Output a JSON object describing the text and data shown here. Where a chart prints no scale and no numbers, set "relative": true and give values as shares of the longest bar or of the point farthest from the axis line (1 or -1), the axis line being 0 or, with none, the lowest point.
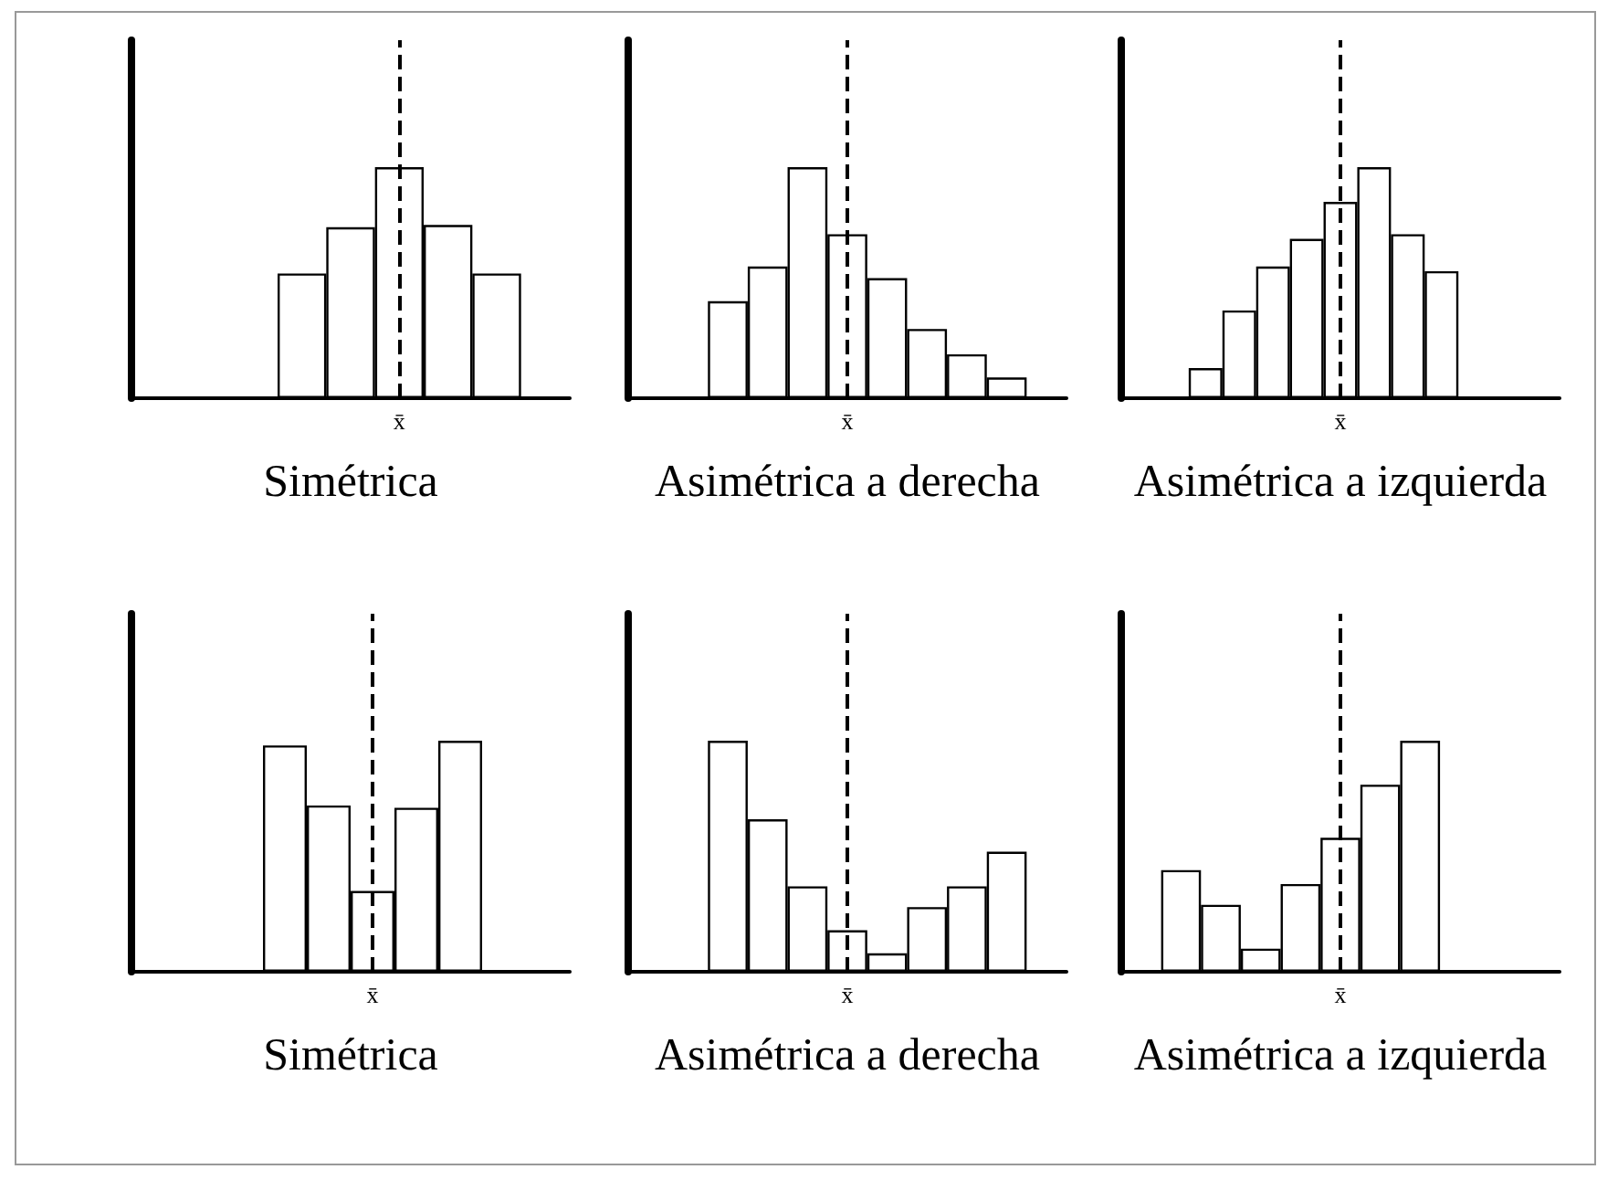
{
  "chart_data": [
    {
      "type": "bar",
      "relative": true,
      "xlabel": "Simétrica",
      "categories": [
        null,
        null,
        null,
        null,
        null
      ],
      "series": [
        {
          "color": "#ffffff",
          "values": [
            0.54,
            0.74,
            1,
            0.75,
            0.54
          ]
        }
      ],
      "annotations": [
        "x̄"
      ]
    },
    {
      "type": "bar",
      "relative": true,
      "xlabel": "Asimétrica a derecha",
      "categories": [
        null,
        null,
        null,
        null,
        null,
        null,
        null,
        null
      ],
      "series": [
        {
          "color": "#ffffff",
          "values": [
            0.42,
            0.57,
            1,
            0.71,
            0.52,
            0.3,
            0.19,
            0.09
          ]
        }
      ],
      "annotations": [
        "x̄"
      ]
    },
    {
      "type": "bar",
      "relative": true,
      "xlabel": "Asimétrica a izquierda",
      "categories": [
        null,
        null,
        null,
        null,
        null,
        null,
        null,
        null
      ],
      "series": [
        {
          "color": "#ffffff",
          "values": [
            0.13,
            0.38,
            0.57,
            0.69,
            0.85,
            1,
            0.71,
            0.55
          ]
        }
      ],
      "annotations": [
        "x̄"
      ]
    },
    {
      "type": "bar",
      "relative": true,
      "xlabel": "Simétrica",
      "categories": [
        null,
        null,
        null,
        null,
        null
      ],
      "series": [
        {
          "color": "#ffffff",
          "values": [
            0.98,
            0.72,
            0.35,
            0.71,
            1
          ]
        }
      ],
      "annotations": [
        "x̄"
      ]
    },
    {
      "type": "bar",
      "relative": true,
      "xlabel": "Asimétrica a derecha",
      "categories": [
        null,
        null,
        null,
        null,
        null,
        null,
        null,
        null
      ],
      "series": [
        {
          "color": "#ffffff",
          "values": [
            1,
            0.66,
            0.37,
            0.18,
            0.08,
            0.28,
            0.37,
            0.52
          ]
        }
      ],
      "annotations": [
        "x̄"
      ]
    },
    {
      "type": "bar",
      "relative": true,
      "xlabel": "Asimétrica a izquierda",
      "categories": [
        null,
        null,
        null,
        null,
        null,
        null,
        null
      ],
      "series": [
        {
          "color": "#ffffff",
          "values": [
            0.44,
            0.29,
            0.1,
            0.38,
            0.58,
            0.81,
            1
          ]
        }
      ],
      "annotations": [
        "x̄"
      ]
    }
  ]
}
